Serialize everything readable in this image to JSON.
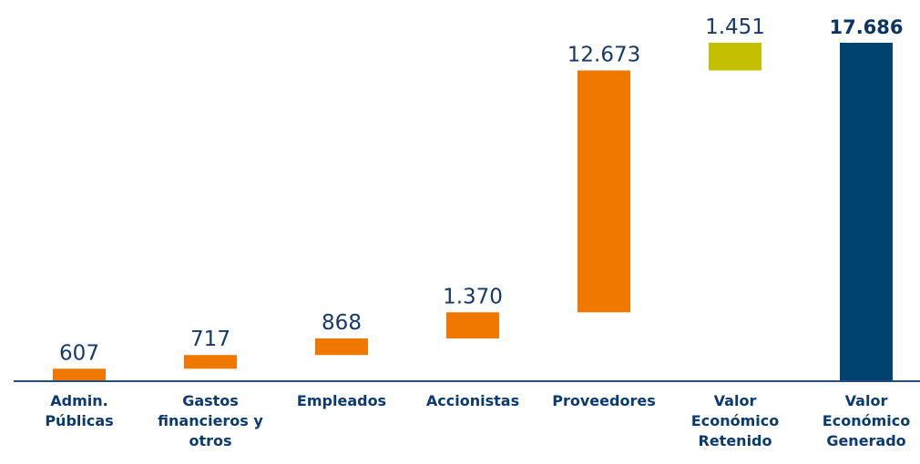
{
  "chart_data": {
    "type": "waterfall",
    "categories": [
      "Admin. Públicas",
      "Gastos financieros y otros",
      "Empleados",
      "Accionistas",
      "Proveedores",
      "Valor Económico Retenido",
      "Valor Económico Generado"
    ],
    "values": [
      607,
      717,
      868,
      1370,
      12673,
      1451,
      17686
    ],
    "value_labels": [
      "607",
      "717",
      "868",
      "1.370",
      "12.673",
      "1.451",
      "17.686"
    ],
    "measure": [
      "relative",
      "relative",
      "relative",
      "relative",
      "relative",
      "relative",
      "total"
    ],
    "colors": [
      "#f07800",
      "#f07800",
      "#f07800",
      "#f07800",
      "#f07800",
      "#c4bf00",
      "#004270"
    ],
    "ylim": [
      0,
      17686
    ]
  }
}
